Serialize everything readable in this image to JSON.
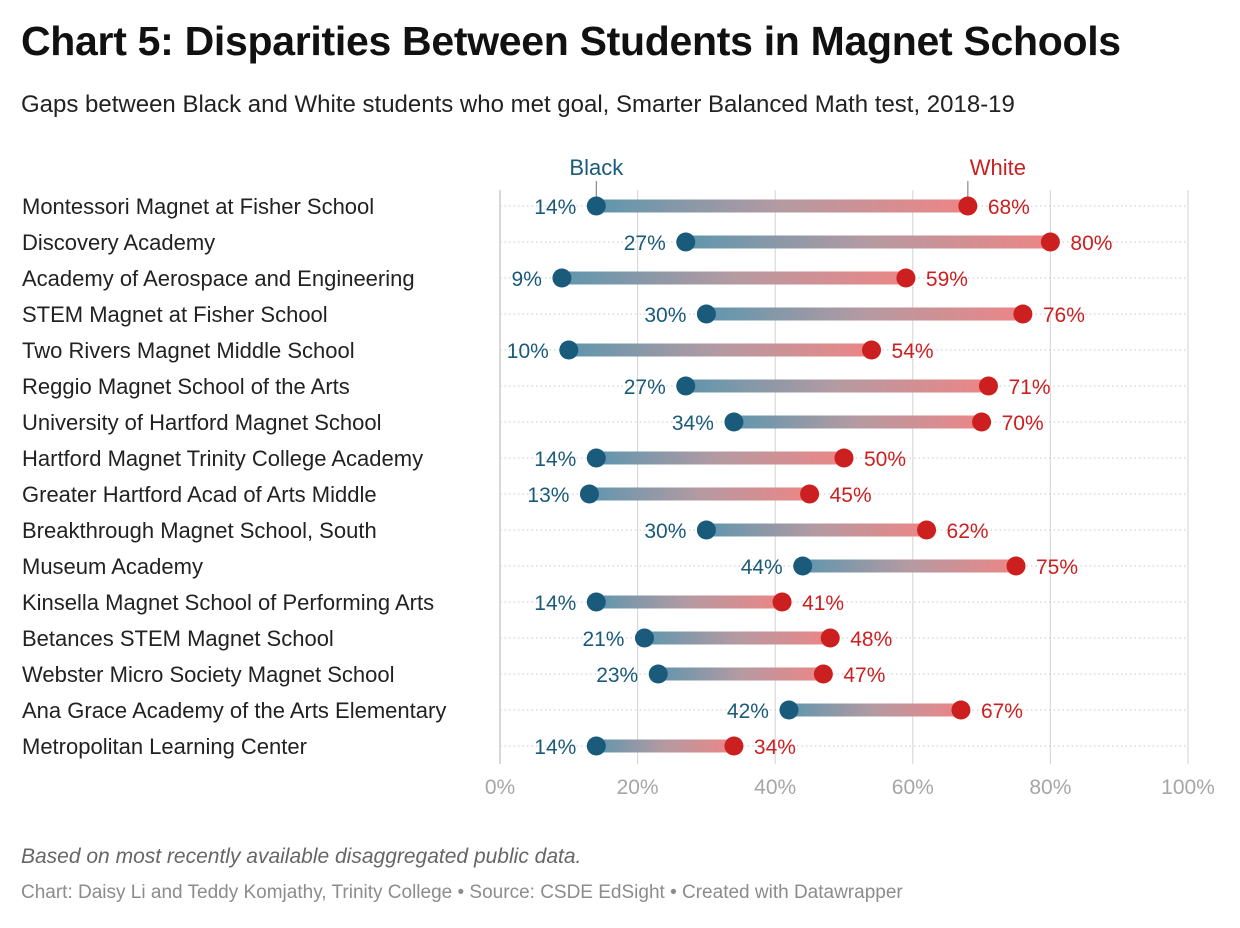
{
  "title": "Chart 5: Disparities Between Students in Magnet Schools",
  "subtitle": "Gaps between Black and White students who met goal, Smarter Balanced Math test, 2018-19",
  "notes": "Based on most recently available disaggregated public data.",
  "credits": "Chart: Daisy Li and Teddy Komjathy, Trinity College • Source: CSDE EdSight • Created with Datawrapper",
  "colors": {
    "black": "#1a5a7a",
    "white": "#cc1f1f",
    "grid": "#d9d9d9",
    "tick": "#a6a6a6",
    "label": "#222222"
  },
  "chart_data": {
    "type": "dot",
    "title": "Chart 5: Disparities Between Students in Magnet Schools",
    "subtitle": "Gaps between Black and White students who met goal, Smarter Balanced Math test, 2018-19",
    "xlim": [
      0,
      100
    ],
    "x_ticks": [
      "0%",
      "20%",
      "40%",
      "60%",
      "80%",
      "100%"
    ],
    "x_tick_values": [
      0,
      20,
      40,
      60,
      80,
      100
    ],
    "grid": true,
    "legend_position": "top, above first row",
    "categories": [
      "Montessori Magnet at Fisher School",
      "Discovery Academy",
      "Academy of Aerospace and Engineering",
      "STEM Magnet at Fisher School",
      "Two Rivers Magnet Middle School",
      "Reggio Magnet School of the Arts",
      "University of Hartford Magnet School",
      "Hartford Magnet Trinity College Academy",
      "Greater Hartford Acad of Arts Middle",
      "Breakthrough Magnet School, South",
      "Museum Academy",
      "Kinsella Magnet School of Performing Arts",
      "Betances STEM Magnet School",
      "Webster Micro Society Magnet School",
      "Ana Grace Academy of the Arts Elementary",
      "Metropolitan Learning Center"
    ],
    "series": [
      {
        "name": "Black",
        "color": "#1a5a7a",
        "values": [
          14,
          27,
          9,
          30,
          10,
          27,
          34,
          14,
          13,
          30,
          44,
          14,
          21,
          23,
          42,
          14
        ],
        "labels": [
          "14%",
          "27%",
          "9%",
          "30%",
          "10%",
          "27%",
          "34%",
          "14%",
          "13%",
          "30%",
          "44%",
          "14%",
          "21%",
          "23%",
          "42%",
          "14%"
        ]
      },
      {
        "name": "White",
        "color": "#cc1f1f",
        "values": [
          68,
          80,
          59,
          76,
          54,
          71,
          70,
          50,
          45,
          62,
          75,
          41,
          48,
          47,
          67,
          34
        ],
        "labels": [
          "68%",
          "80%",
          "59%",
          "76%",
          "54%",
          "71%",
          "70%",
          "50%",
          "45%",
          "62%",
          "75%",
          "41%",
          "48%",
          "47%",
          "67%",
          "34%"
        ]
      }
    ]
  }
}
